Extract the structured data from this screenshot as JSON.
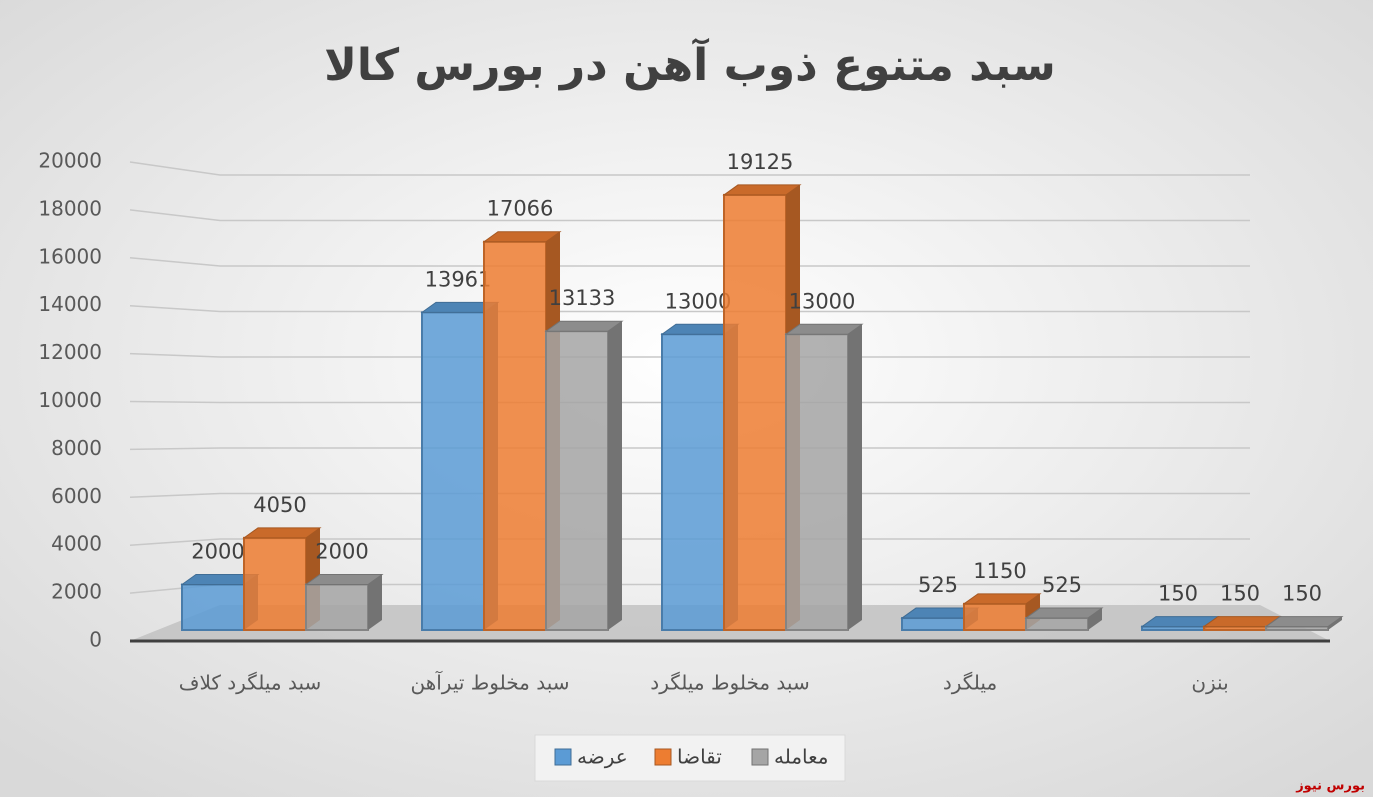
{
  "chart_data": {
    "type": "bar3d",
    "title": "سبد متنوع ذوب آهن در بورس کالا",
    "categories": [
      "سبد میلگرد کلاف",
      "سبد مخلوط تیرآهن",
      "سبد مخلوط میلگرد",
      "میلگرد",
      "بنزن"
    ],
    "series": [
      {
        "name": "عرضه",
        "color": "#5b9bd5",
        "values": [
          2000,
          13961,
          13000,
          525,
          150
        ]
      },
      {
        "name": "تقاضا",
        "color": "#ed7d31",
        "values": [
          4050,
          17066,
          19125,
          1150,
          150
        ]
      },
      {
        "name": "معامله",
        "color": "#a5a5a5",
        "values": [
          2000,
          13133,
          13000,
          525,
          150
        ]
      }
    ],
    "ylim": [
      0,
      20000
    ],
    "yticks": [
      0,
      2000,
      4000,
      6000,
      8000,
      10000,
      12000,
      14000,
      16000,
      18000,
      20000
    ],
    "grid": true,
    "legend": "bottom",
    "watermark": "بورس نیوز"
  }
}
